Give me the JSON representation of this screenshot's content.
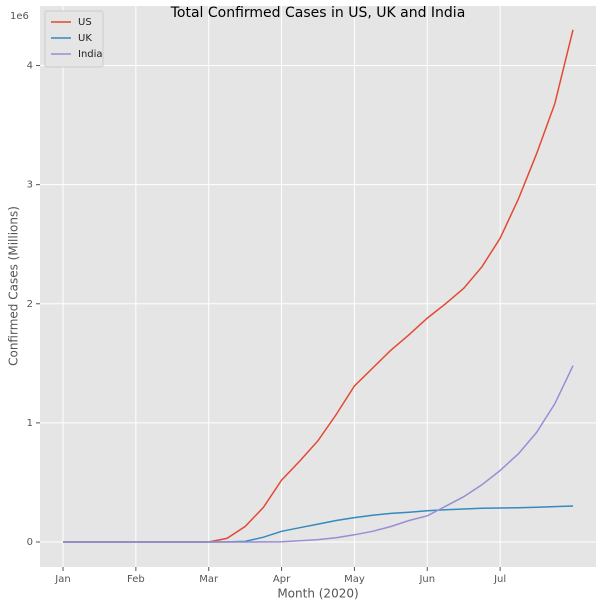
{
  "chart_data": {
    "type": "line",
    "title": "Total Confirmed Cases in US, UK and India",
    "x_label": "Month (2020)",
    "y_label": "Confirmed Cases (Millions)",
    "y_offset_label": "1e6",
    "categories": [
      "Jan",
      null,
      null,
      null,
      "Feb",
      null,
      null,
      null,
      "Mar",
      null,
      null,
      null,
      "Apr",
      null,
      null,
      null,
      "May",
      null,
      null,
      null,
      "Jun",
      null,
      null,
      null,
      "Jul",
      null,
      null,
      null,
      null
    ],
    "series": [
      {
        "name": "US",
        "color": "#E24A33",
        "values": [
          0,
          0,
          0,
          0,
          0,
          0,
          0,
          0,
          0,
          0.03,
          0.13,
          0.29,
          0.52,
          0.68,
          0.85,
          1.07,
          1.31,
          1.46,
          1.61,
          1.74,
          1.88,
          2.0,
          2.13,
          2.31,
          2.55,
          2.88,
          3.26,
          3.68,
          4.3
        ]
      },
      {
        "name": "UK",
        "color": "#348ABD",
        "values": [
          0,
          0,
          0,
          0,
          0,
          0,
          0,
          0,
          0,
          0.001,
          0.005,
          0.04,
          0.09,
          0.12,
          0.15,
          0.18,
          0.205,
          0.225,
          0.24,
          0.25,
          0.262,
          0.27,
          0.277,
          0.283,
          0.285,
          0.288,
          0.292,
          0.297,
          0.302
        ]
      },
      {
        "name": "India",
        "color": "#988ED5",
        "values": [
          0,
          0,
          0,
          0,
          0,
          0,
          0,
          0,
          0,
          0,
          0,
          0.001,
          0.002,
          0.01,
          0.02,
          0.035,
          0.06,
          0.09,
          0.13,
          0.18,
          0.22,
          0.3,
          0.38,
          0.48,
          0.6,
          0.74,
          0.92,
          1.16,
          1.48
        ]
      }
    ],
    "ylim": [
      -0.21,
      4.5
    ],
    "yticks": [
      0,
      1,
      2,
      3,
      4
    ],
    "grid": true,
    "legend_position": "upper-left"
  }
}
